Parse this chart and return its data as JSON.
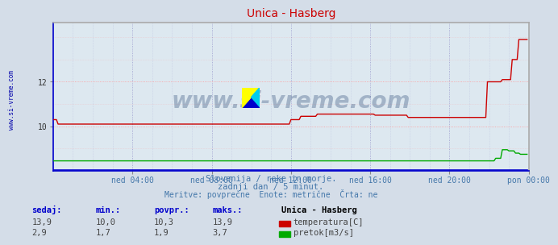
{
  "title": "Unica - Hasberg",
  "bg_color": "#d4dde8",
  "plot_bg_color": "#dde8f0",
  "grid_color_h": "#ff9999",
  "grid_color_v": "#9999cc",
  "xlabel_ticks": [
    "ned 04:00",
    "ned 08:00",
    "ned 12:00",
    "ned 16:00",
    "ned 20:00",
    "pon 00:00"
  ],
  "ylabel_ticks": [
    "10",
    "12"
  ],
  "ylabel_vals": [
    10,
    12
  ],
  "ylim_temp": [
    8.0,
    14.67
  ],
  "xlim": [
    0,
    288
  ],
  "temp_color": "#cc0000",
  "flow_color": "#00aa00",
  "height_color": "#0000cc",
  "watermark_text": "www.si-vreme.com",
  "watermark_color": "#1a3a6a",
  "watermark_alpha": 0.3,
  "subtitle1": "Slovenija / reke in morje.",
  "subtitle2": "zadnji dan / 5 minut.",
  "subtitle3": "Meritve: povprečne  Enote: metrične  Črta: ne",
  "footer_color": "#4477aa",
  "legend_title": "Unica - Hasberg",
  "legend_items": [
    "temperatura[C]",
    "pretok[m3/s]"
  ],
  "legend_colors": [
    "#cc0000",
    "#00aa00"
  ],
  "stats_headers": [
    "sedaj:",
    "min.:",
    "povpr.:",
    "maks.:"
  ],
  "stats_temp": [
    "13,9",
    "10,0",
    "10,3",
    "13,9"
  ],
  "stats_flow": [
    "2,9",
    "1,7",
    "1,9",
    "3,7"
  ],
  "left_label": "www.si-vreme.com",
  "left_label_color": "#0000aa",
  "title_color": "#cc0000",
  "axis_border_color": "#0000cc"
}
